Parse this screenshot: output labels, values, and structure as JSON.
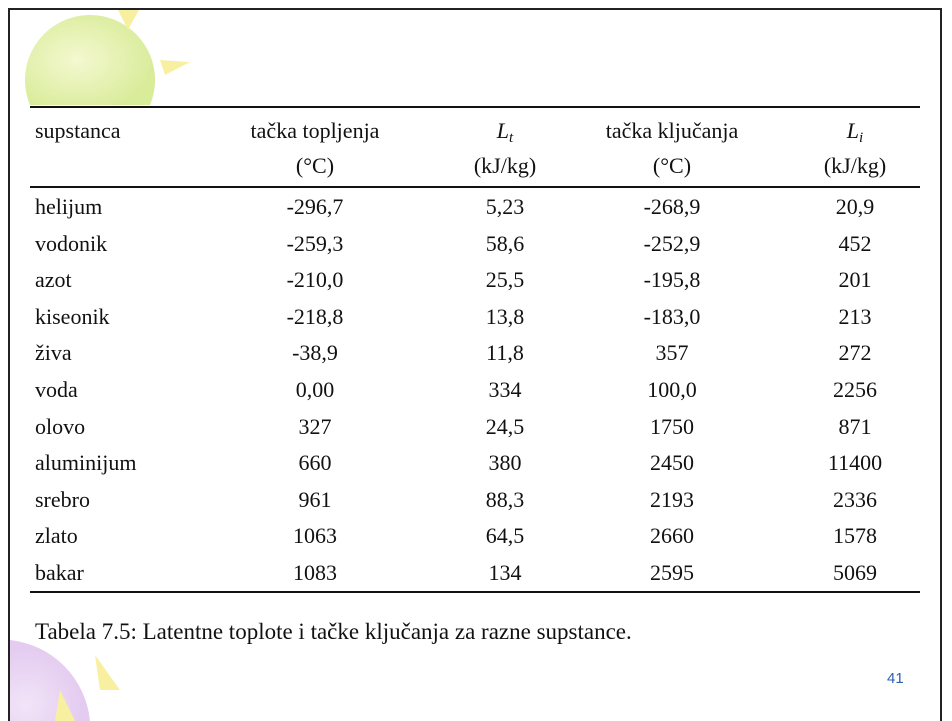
{
  "table": {
    "header": [
      {
        "title": "supstanca"
      },
      {
        "title": "tačka topljenja",
        "unit": "(°C)"
      },
      {
        "symbol": "L",
        "subscript": "t",
        "unit": "(kJ/kg)"
      },
      {
        "title": "tačka ključanja",
        "unit": "(°C)"
      },
      {
        "symbol": "L",
        "subscript": "i",
        "unit": "(kJ/kg)"
      }
    ],
    "rows": [
      [
        "helijum",
        "-296,7",
        "5,23",
        "-268,9",
        "20,9"
      ],
      [
        "vodonik",
        "-259,3",
        "58,6",
        "-252,9",
        "452"
      ],
      [
        "azot",
        "-210,0",
        "25,5",
        "-195,8",
        "201"
      ],
      [
        "kiseonik",
        "-218,8",
        "13,8",
        "-183,0",
        "213"
      ],
      [
        "živa",
        "-38,9",
        "11,8",
        "357",
        "272"
      ],
      [
        "voda",
        "0,00",
        "334",
        "100,0",
        "2256"
      ],
      [
        "olovo",
        "327",
        "24,5",
        "1750",
        "871"
      ],
      [
        "aluminijum",
        "660",
        "380",
        "2450",
        "11400"
      ],
      [
        "srebro",
        "961",
        "88,3",
        "2193",
        "2336"
      ],
      [
        "zlato",
        "1063",
        "64,5",
        "2660",
        "1578"
      ],
      [
        "bakar",
        "1083",
        "134",
        "2595",
        "5069"
      ]
    ],
    "caption": "Tabela 7.5: Latentne toplote i tačke ključanja za razne supstance."
  },
  "page_number": "41"
}
